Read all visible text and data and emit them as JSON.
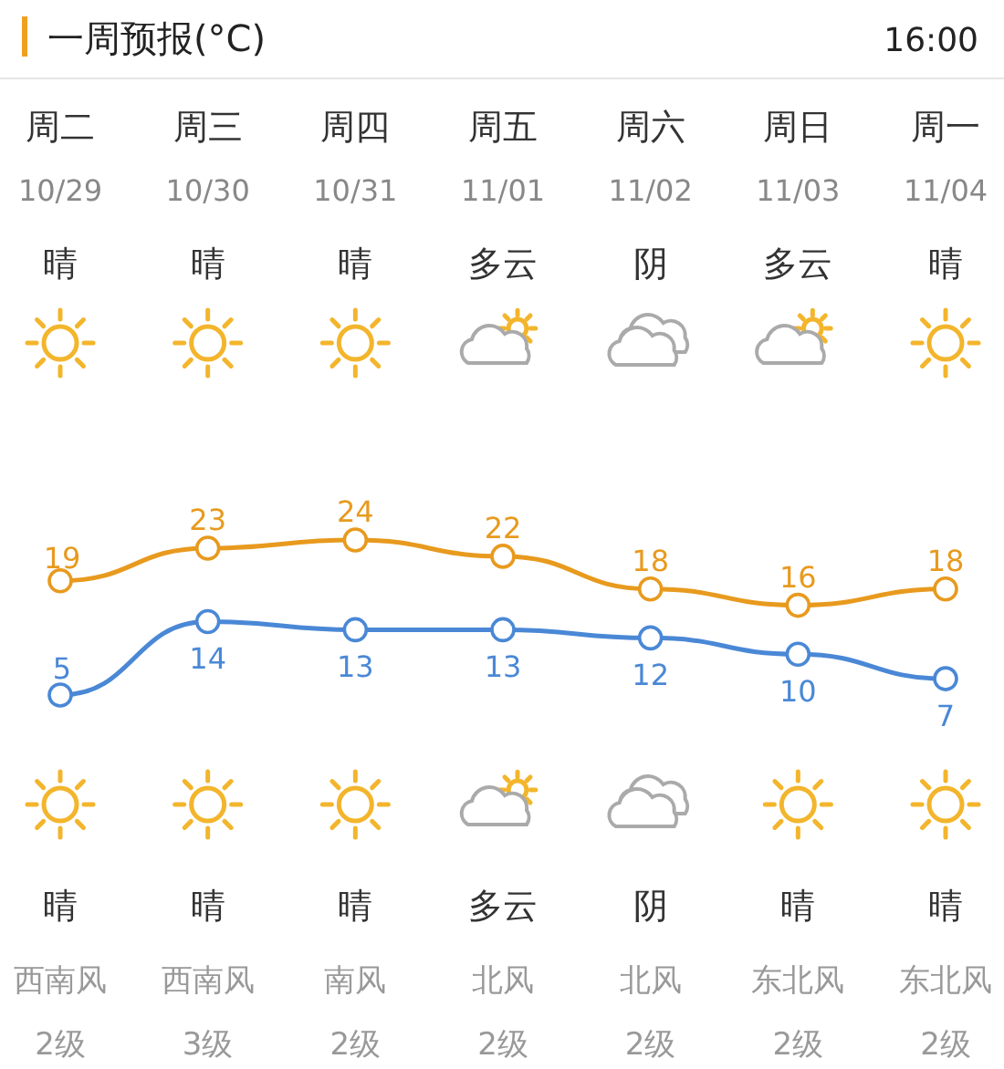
{
  "chart_data": {
    "type": "line",
    "title": "一周预报(°C)",
    "categories": [
      "周二",
      "周三",
      "周四",
      "周五",
      "周六",
      "周日",
      "周一"
    ],
    "series": [
      {
        "color": "#e89a1e",
        "values": [
          19,
          23,
          24,
          22,
          18,
          16,
          18
        ]
      },
      {
        "color": "#4a88d6",
        "values": [
          5,
          14,
          13,
          13,
          12,
          10,
          7
        ]
      }
    ],
    "marker": "circle",
    "data_labels": true,
    "annotations": [
      "16:00",
      "10/29",
      "10/30",
      "10/31",
      "11/01",
      "11/02",
      "11/03",
      "11/04",
      "晴",
      "晴",
      "晴",
      "多云",
      "阴",
      "多云",
      "晴",
      "晴",
      "晴",
      "晴",
      "多云",
      "阴",
      "晴",
      "晴",
      "西南风",
      "西南风",
      "南风",
      "北风",
      "北风",
      "东北风",
      "东北风",
      "2级",
      "3级",
      "2级",
      "2级",
      "2级",
      "2级",
      "2级"
    ]
  }
}
